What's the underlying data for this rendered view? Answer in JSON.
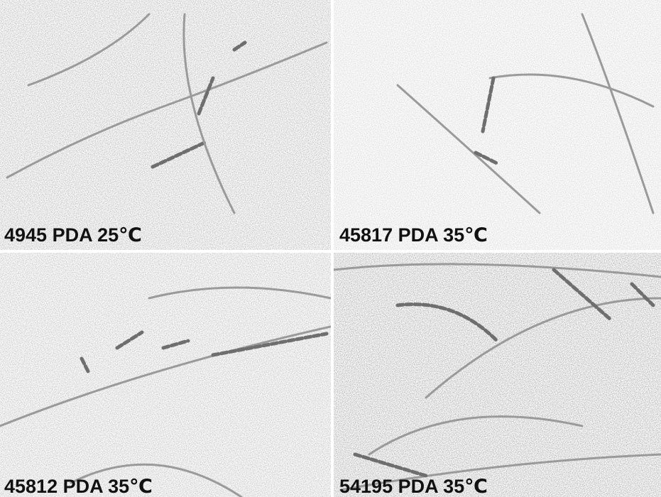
{
  "panels": [
    {
      "label": "4945 PDA 25℃"
    },
    {
      "label": "45817 PDA 35℃"
    },
    {
      "label": "45812 PDA 35℃"
    },
    {
      "label": "54195 PDA 35℃"
    }
  ]
}
